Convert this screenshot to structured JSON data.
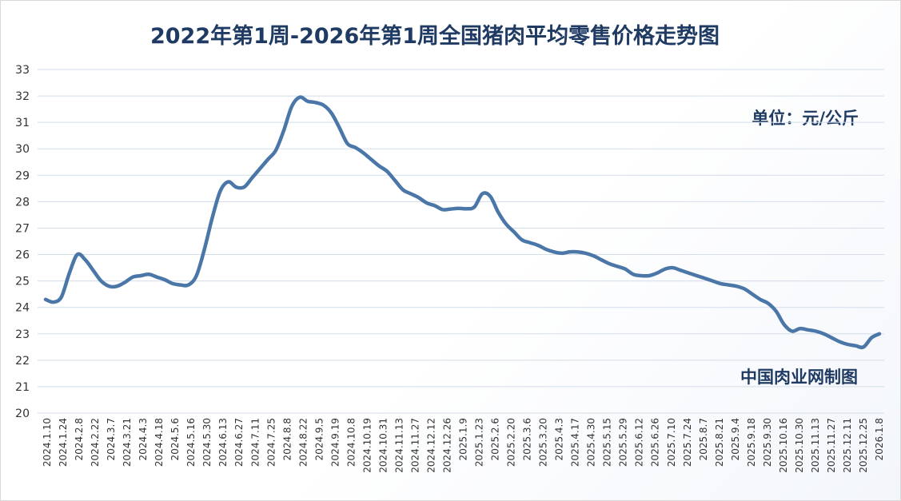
{
  "chart_data": {
    "type": "line",
    "title": "2022年第1周-2026年第1周全国猪肉平均零售价格走势图",
    "unit_label": "单位：元/公斤",
    "credit": "中国肉业网制图",
    "ylim": [
      20,
      33
    ],
    "yticks": [
      20,
      21,
      22,
      23,
      24,
      25,
      26,
      27,
      28,
      29,
      30,
      31,
      32,
      33
    ],
    "grid": true,
    "legend": "none",
    "line_color": "#4a77a8",
    "x_tick_labels": [
      "2024.1.10",
      "2024.1.24",
      "2024.2.8",
      "2024.2.22",
      "2024.3.7",
      "2024.3.21",
      "2024.4.3",
      "2024.4.18",
      "2024.5.6",
      "2024.5.16",
      "2024.5.30",
      "2024.6.13",
      "2024.6.27",
      "2024.7.11",
      "2024.7.25",
      "2024.8.8",
      "2024.8.22",
      "2024.9.5",
      "2024.9.19",
      "2024.10.8",
      "2024.10.19",
      "2024.10.31",
      "2024.11.13",
      "2024.11.27",
      "2024.12.12",
      "2024.12.26",
      "2025.1.9",
      "2025.1.23",
      "2025.2.6",
      "2025.2.20",
      "2025.3.6",
      "2025.3.20",
      "2025.4.3",
      "2025.4.17",
      "2025.4.30",
      "2025.5.15",
      "2025.5.29",
      "2025.6.12",
      "2025.6.26",
      "2025.7.10",
      "2025.7.24",
      "2025.8.7",
      "2025.8.21",
      "2025.9.4",
      "2025.9.18",
      "2025.9.30",
      "2025.10.16",
      "2025.10.30",
      "2025.11.13",
      "2025.11.27",
      "2025.12.11",
      "2025.12.25",
      "2026.1.8"
    ],
    "values": [
      24.3,
      24.2,
      24.4,
      25.3,
      26.0,
      25.8,
      25.4,
      25.0,
      24.8,
      24.8,
      24.95,
      25.15,
      25.2,
      25.25,
      25.15,
      25.05,
      24.9,
      24.85,
      24.85,
      25.2,
      26.2,
      27.4,
      28.4,
      28.75,
      28.55,
      28.55,
      28.9,
      29.25,
      29.6,
      29.95,
      30.7,
      31.6,
      31.95,
      31.8,
      31.75,
      31.65,
      31.35,
      30.8,
      30.2,
      30.05,
      29.85,
      29.6,
      29.35,
      29.15,
      28.8,
      28.45,
      28.3,
      28.15,
      27.95,
      27.85,
      27.7,
      27.72,
      27.75,
      27.73,
      27.8,
      28.3,
      28.2,
      27.6,
      27.15,
      26.85,
      26.55,
      26.45,
      26.35,
      26.2,
      26.1,
      26.05,
      26.1,
      26.1,
      26.05,
      25.95,
      25.8,
      25.65,
      25.55,
      25.45,
      25.25,
      25.2,
      25.2,
      25.3,
      25.45,
      25.5,
      25.4,
      25.3,
      25.2,
      25.1,
      25.0,
      24.9,
      24.85,
      24.8,
      24.7,
      24.5,
      24.3,
      24.15,
      23.85,
      23.35,
      23.1,
      23.2,
      23.15,
      23.1,
      23.0,
      22.85,
      22.7,
      22.6,
      22.55,
      22.5,
      22.85,
      23.0
    ]
  }
}
